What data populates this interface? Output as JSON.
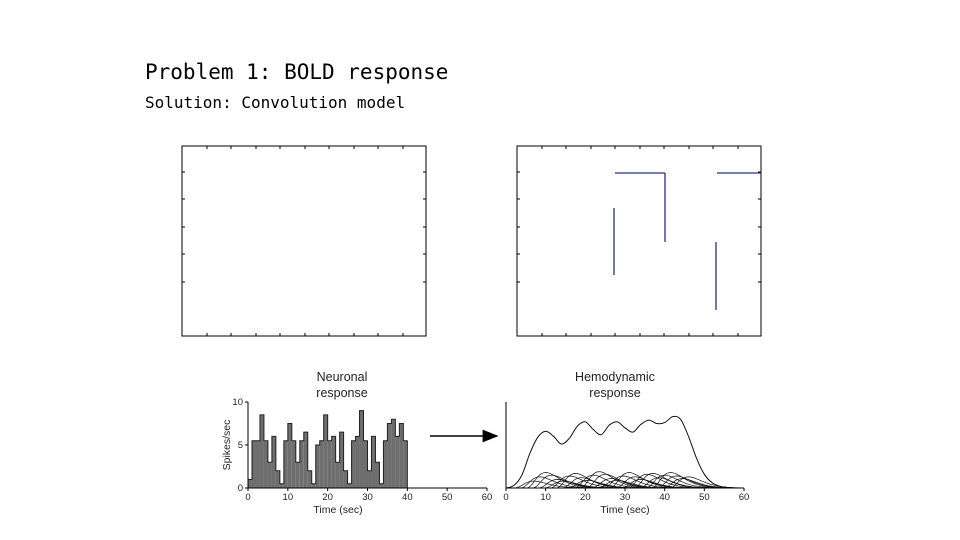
{
  "slide": {
    "title": "Problem 1: BOLD response",
    "subtitle": "Solution: Convolution model"
  },
  "colors": {
    "bar_fill": "#6e6e6e",
    "stimulus_line": "#2a2f86",
    "curve": "#111111"
  },
  "chart_data": [
    {
      "type": "area",
      "title_lines": [
        "Neuronal",
        "response"
      ],
      "xlabel": "Time (sec)",
      "ylabel": "Spikes/sec",
      "xlim": [
        0,
        60
      ],
      "ylim": [
        0,
        10
      ],
      "xticks": [
        0,
        10,
        20,
        30,
        40,
        50,
        60
      ],
      "yticks": [
        0,
        5,
        10
      ],
      "x": [
        0,
        1,
        2,
        3,
        4,
        5,
        6,
        7,
        8,
        9,
        10,
        11,
        12,
        13,
        14,
        15,
        16,
        17,
        18,
        19,
        20,
        21,
        22,
        23,
        24,
        25,
        26,
        27,
        28,
        29,
        30,
        31,
        32,
        33,
        34,
        35,
        36,
        37,
        38,
        39,
        40
      ],
      "values": [
        1.0,
        5.5,
        5.5,
        8.5,
        5.5,
        3.0,
        6.0,
        2.0,
        0.5,
        5.5,
        7.5,
        5.5,
        3.0,
        5.5,
        6.5,
        2.0,
        0.5,
        5.0,
        5.5,
        8.5,
        5.5,
        6.0,
        3.0,
        6.5,
        2.0,
        0.5,
        5.5,
        6.0,
        9.0,
        5.5,
        2.0,
        6.0,
        3.0,
        0.5,
        5.5,
        7.5,
        8.0,
        6.0,
        7.5,
        5.5,
        0.0
      ]
    },
    {
      "type": "line",
      "title_lines": [
        "Hemodynamic",
        "response"
      ],
      "xlabel": "Time (sec)",
      "xlim": [
        0,
        60
      ],
      "ylim": [
        0,
        10
      ],
      "xticks": [
        0,
        10,
        20,
        30,
        40,
        50,
        60
      ],
      "series": [
        {
          "x": [
            0,
            2,
            4,
            6,
            8,
            10,
            12,
            14,
            16,
            18,
            20,
            22,
            24,
            26,
            28,
            30,
            32,
            34,
            36,
            38,
            40,
            42,
            44,
            46,
            48,
            50,
            52,
            54,
            56,
            58,
            60
          ],
          "values": [
            0.0,
            0.3,
            1.5,
            4.0,
            5.9,
            6.6,
            6.0,
            5.1,
            5.8,
            7.2,
            7.7,
            6.8,
            6.2,
            7.3,
            7.7,
            7.0,
            6.5,
            7.4,
            7.9,
            7.5,
            7.6,
            8.3,
            8.0,
            6.0,
            3.5,
            1.6,
            0.6,
            0.2,
            0.05,
            0.0,
            0.0
          ]
        }
      ],
      "components": {
        "start": 2,
        "end": 42,
        "step": 1.5,
        "peaks": [
          0.8,
          1.3,
          1.8,
          1.5,
          1.0,
          0.8,
          1.4,
          1.7,
          1.2,
          0.9,
          1.5,
          1.9,
          1.6,
          1.1,
          0.9,
          1.4,
          1.8,
          1.3,
          1.0,
          1.6,
          1.7,
          1.2,
          1.5,
          1.8,
          1.4,
          1.1,
          1.3
        ]
      }
    }
  ]
}
